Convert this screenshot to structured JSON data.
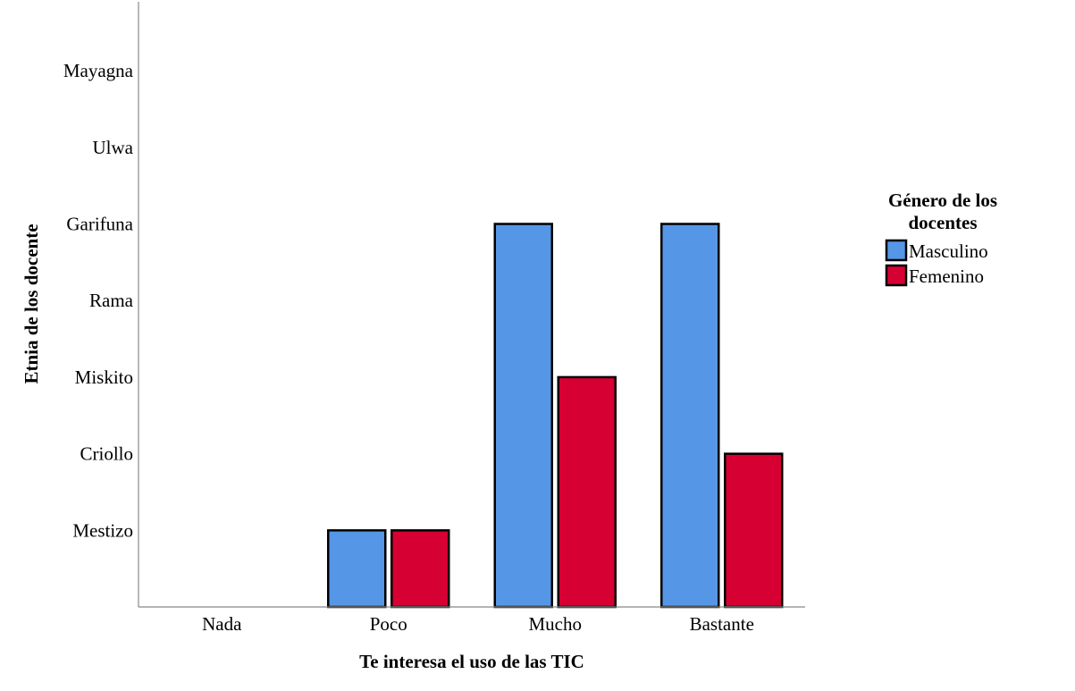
{
  "chart_data": {
    "type": "bar",
    "xlabel": "Te interesa el uso de las TIC",
    "ylabel": "Etnia de los docente",
    "categories": [
      "Nada",
      "Poco",
      "Mucho",
      "Bastante"
    ],
    "y_categories": [
      "Mestizo",
      "Criollo",
      "Miskito",
      "Rama",
      "Garifuna",
      "Ulwa",
      "Mayagna"
    ],
    "y_value_note": "Category axis levels: Mestizo=1, Criollo=2, Miskito=3, Rama=4, Garifuna=5, Ulwa=6, Mayagna=7",
    "ylim": [
      0,
      7.9
    ],
    "grid": false,
    "legend": {
      "title": "Género de los docentes",
      "title_lines": [
        "Género de los",
        "docentes"
      ],
      "position": "right"
    },
    "series": [
      {
        "name": "Masculino",
        "color": "#5596e6",
        "values": [
          null,
          1,
          5,
          5
        ]
      },
      {
        "name": "Femenino",
        "color": "#d70033",
        "values": [
          null,
          1,
          3,
          2
        ]
      }
    ]
  }
}
